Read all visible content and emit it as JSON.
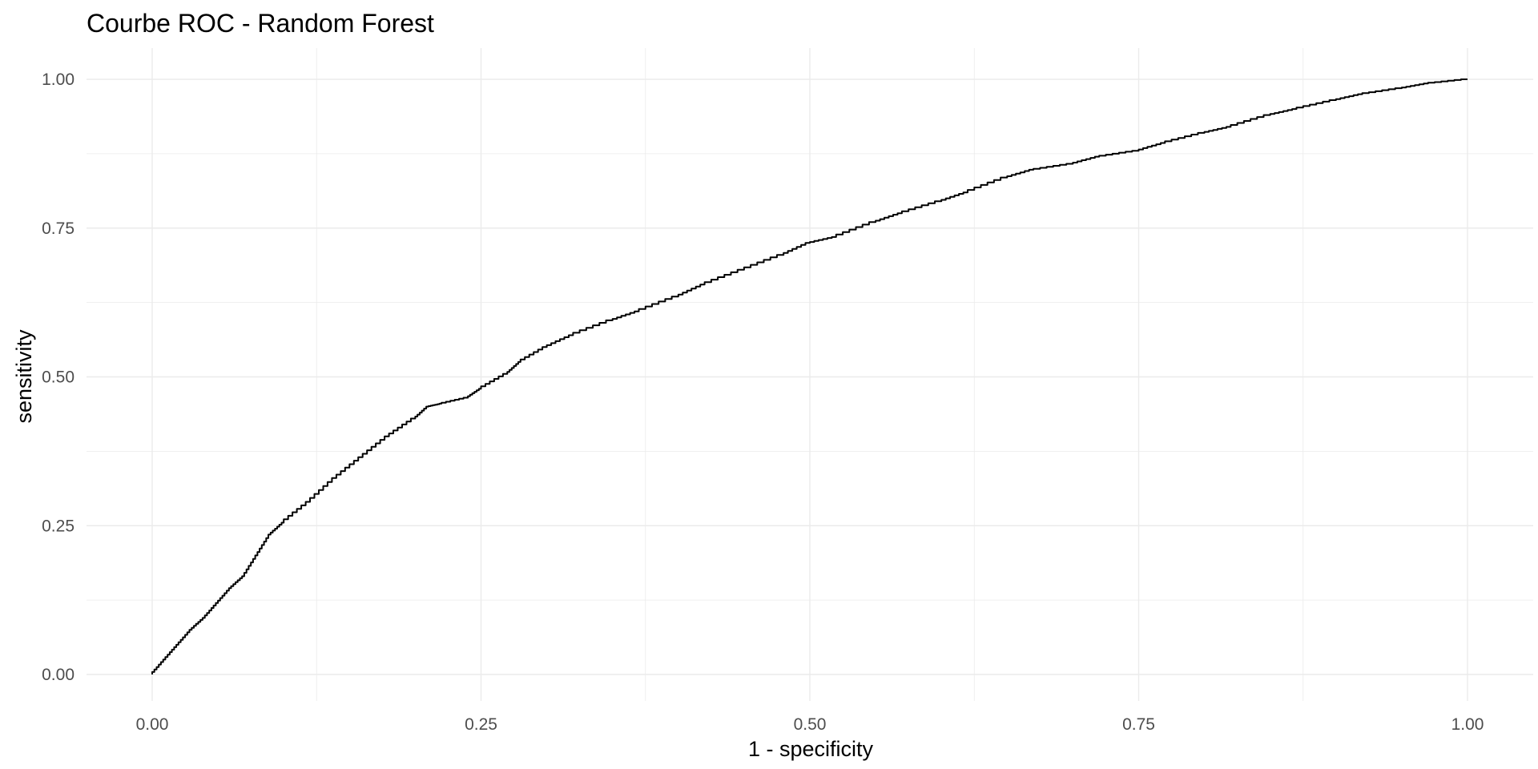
{
  "chart_data": {
    "type": "line",
    "title": "Courbe ROC - Random Forest",
    "xlabel": "1 - specificity",
    "ylabel": "sensitivity",
    "xlim": [
      0,
      1
    ],
    "ylim": [
      0,
      1
    ],
    "x_ticks": [
      0,
      0.25,
      0.5,
      0.75,
      1
    ],
    "x_tick_labels": [
      "0.00",
      "0.25",
      "0.50",
      "0.75",
      "1.00"
    ],
    "y_ticks": [
      0,
      0.25,
      0.5,
      0.75,
      1
    ],
    "y_tick_labels": [
      "0.00",
      "0.25",
      "0.50",
      "0.75",
      "1.00"
    ],
    "grid": true,
    "legend": "none",
    "line_color": "#000000",
    "series": [
      {
        "x": [
          0,
          0.01,
          0.02,
          0.03,
          0.04,
          0.05,
          0.06,
          0.07,
          0.08,
          0.09,
          0.1,
          0.12,
          0.14,
          0.16,
          0.18,
          0.2,
          0.21,
          0.22,
          0.24,
          0.25,
          0.27,
          0.28,
          0.3,
          0.32,
          0.35,
          0.37,
          0.4,
          0.42,
          0.45,
          0.48,
          0.5,
          0.52,
          0.55,
          0.57,
          0.6,
          0.62,
          0.65,
          0.67,
          0.7,
          0.72,
          0.75,
          0.77,
          0.8,
          0.82,
          0.85,
          0.87,
          0.9,
          0.92,
          0.95,
          0.97,
          1.0
        ],
        "y": [
          0,
          0.025,
          0.05,
          0.075,
          0.095,
          0.12,
          0.145,
          0.165,
          0.2,
          0.235,
          0.255,
          0.29,
          0.33,
          0.365,
          0.4,
          0.43,
          0.45,
          0.455,
          0.465,
          0.48,
          0.505,
          0.525,
          0.55,
          0.57,
          0.595,
          0.61,
          0.635,
          0.655,
          0.68,
          0.705,
          0.725,
          0.735,
          0.76,
          0.775,
          0.795,
          0.81,
          0.835,
          0.848,
          0.858,
          0.87,
          0.88,
          0.893,
          0.91,
          0.92,
          0.94,
          0.95,
          0.965,
          0.975,
          0.985,
          0.993,
          1.0
        ]
      }
    ]
  }
}
